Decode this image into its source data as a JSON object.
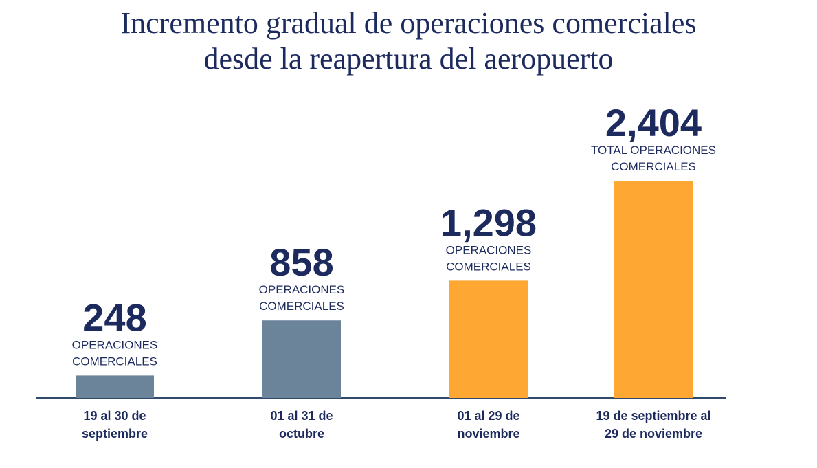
{
  "title_line1": "Incremento gradual de operaciones comerciales",
  "title_line2": "desde la reapertura del aeropuerto",
  "colors": {
    "navy": "#1c2a5e",
    "gray_bar": "#6c849a",
    "orange_bar": "#ffa733",
    "axis": "#2f4a6b"
  },
  "chart_data": {
    "type": "bar",
    "title": "Incremento gradual de operaciones comerciales desde la reapertura del aeropuerto",
    "categories": [
      [
        "19 al 30 de",
        "septiembre"
      ],
      [
        "01 al 31 de",
        "octubre"
      ],
      [
        "01 al 29 de",
        "noviembre"
      ],
      [
        "19 de septiembre al",
        "29 de noviembre"
      ]
    ],
    "values": [
      248,
      858,
      1298,
      2404
    ],
    "value_labels": [
      "248",
      "858",
      "1,298",
      "2,404"
    ],
    "bar_captions": [
      [
        "OPERACIONES",
        "COMERCIALES"
      ],
      [
        "OPERACIONES",
        "COMERCIALES"
      ],
      [
        "OPERACIONES",
        "COMERCIALES"
      ],
      [
        "TOTAL OPERACIONES",
        "COMERCIALES"
      ]
    ],
    "bar_colors": [
      "#6c849a",
      "#6c849a",
      "#ffa733",
      "#ffa733"
    ],
    "xlabel": "",
    "ylabel": "",
    "ylim": [
      0,
      2404
    ],
    "grid": false,
    "legend": "none"
  }
}
